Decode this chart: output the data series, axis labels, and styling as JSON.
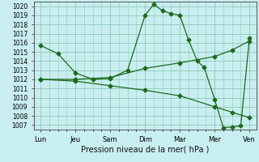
{
  "background_color": "#c8eef0",
  "grid_color": "#90c8b8",
  "line_color": "#1a6b1a",
  "xlabel": "Pression niveau de la mer( hPa )",
  "ylim": [
    1006.5,
    1020.5
  ],
  "yticks": [
    1007,
    1008,
    1009,
    1010,
    1011,
    1012,
    1013,
    1014,
    1015,
    1016,
    1017,
    1018,
    1019,
    1020
  ],
  "xtick_labels": [
    "Lun",
    "Jeu",
    "Sam",
    "Dim",
    "Mar",
    "Mer",
    "Ven"
  ],
  "xtick_positions": [
    0,
    1,
    2,
    3,
    4,
    5,
    6
  ],
  "line1_x": [
    0,
    0.5,
    1,
    1.5,
    2,
    2.5,
    3,
    3.25,
    3.5,
    3.75,
    4,
    4.25,
    4.5,
    4.7,
    5,
    5.25,
    5.5,
    5.75,
    6
  ],
  "line1_y": [
    1015.7,
    1014.8,
    1012.7,
    1012.0,
    1012.1,
    1013.0,
    1019.0,
    1020.2,
    1019.5,
    1019.2,
    1019.0,
    1016.3,
    1014.0,
    1013.3,
    1009.8,
    1006.7,
    1006.8,
    1006.9,
    1016.5
  ],
  "line2_x": [
    0,
    1,
    2,
    3,
    4,
    5,
    5.5,
    6
  ],
  "line2_y": [
    1012.0,
    1012.0,
    1012.2,
    1013.2,
    1013.8,
    1014.5,
    1015.2,
    1016.2
  ],
  "line3_x": [
    0,
    1,
    2,
    3,
    4,
    5,
    5.5,
    6
  ],
  "line3_y": [
    1012.0,
    1011.8,
    1011.3,
    1010.8,
    1010.2,
    1009.0,
    1008.4,
    1007.8
  ]
}
